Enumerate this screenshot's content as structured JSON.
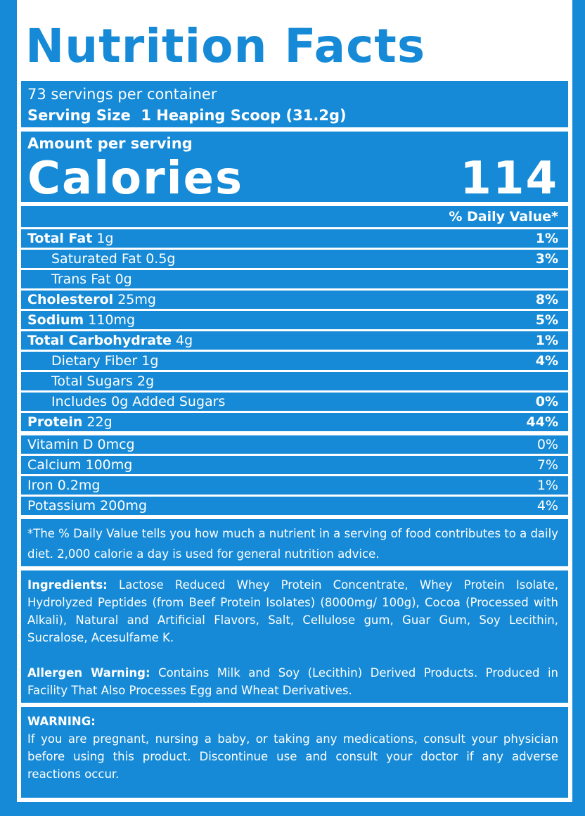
{
  "header": {
    "title": "Nutrition Facts"
  },
  "serving": {
    "servings": "73 servings per container",
    "size_label": "Serving Size",
    "size_value": "1 Heaping Scoop (31.2g)"
  },
  "amount_label": "Amount per serving",
  "calories": {
    "label": "Calories",
    "value": "114"
  },
  "dv_header": "% Daily Value*",
  "nutrients": [
    {
      "name": "Total Fat",
      "amount": "1g",
      "dv": "1%",
      "bold": true
    },
    {
      "name": "Saturated Fat",
      "amount": "0.5g",
      "dv": "3%",
      "indent": true
    },
    {
      "name": "Trans Fat",
      "amount": "0g",
      "indent": true
    },
    {
      "name": "Cholesterol",
      "amount": "25mg",
      "dv": "8%",
      "bold": true
    },
    {
      "name": "Sodium",
      "amount": "110mg",
      "dv": "5%",
      "bold": true
    },
    {
      "name": "Total Carbohydrate",
      "amount": "4g",
      "dv": "1%",
      "bold": true
    },
    {
      "name": "Dietary Fiber",
      "amount": "1g",
      "dv": "4%",
      "indent": true
    },
    {
      "name": "Total Sugars",
      "amount": "2g",
      "indent": true
    },
    {
      "name": "Includes 0g Added Sugars",
      "dv": "0%",
      "indent": true
    },
    {
      "name": "Protein",
      "amount": "22g",
      "dv": "44%",
      "bold": true
    }
  ],
  "vitamins": [
    {
      "name": "Vitamin D 0mcg",
      "dv": "0%"
    },
    {
      "name": "Calcium 100mg",
      "dv": "7%"
    },
    {
      "name": "Iron 0.2mg",
      "dv": "1%"
    },
    {
      "name": "Potassium 200mg",
      "dv": "4%"
    }
  ],
  "footnote": "*The % Daily Value tells you how much a nutrient in a serving of food contributes to a daily diet. 2,000 calorie a day is used for general nutrition advice.",
  "ingredients": {
    "label": "Ingredients:",
    "text": "Lactose Reduced Whey Protein Concentrate, Whey Protein Isolate, Hydrolyzed Peptides (from Beef Protein Isolates) (8000mg/ 100g), Cocoa (Processed with Alkali), Natural and Artificial Flavors, Salt, Cellulose gum, Guar Gum, Soy Lecithin, Sucralose, Acesulfame K."
  },
  "allergen": {
    "label": "Allergen Warning:",
    "text": "Contains Milk and Soy (Lecithin) Derived Products. Produced in Facility That Also Processes Egg and Wheat Derivatives."
  },
  "warning": {
    "label": "WARNING:",
    "text": "If you are pregnant, nursing a baby, or taking any medications, consult your physician before using this product. Discontinue use and consult your doctor if any adverse reactions occur."
  }
}
